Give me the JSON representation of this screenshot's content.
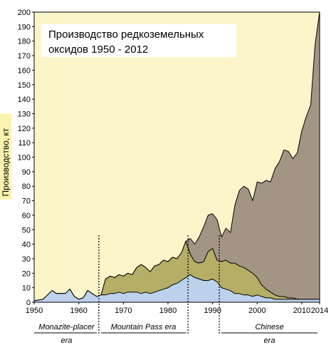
{
  "chart_data": {
    "type": "area",
    "title_lines": [
      "Производство редкоземельных",
      "оксидов 1950 - 2012"
    ],
    "xlabel": "",
    "ylabel": "Производство, кт",
    "xlim": [
      1950,
      2014
    ],
    "ylim": [
      0,
      200
    ],
    "x_ticks": [
      1950,
      1960,
      1970,
      1980,
      1990,
      2000,
      2010,
      2014
    ],
    "y_ticks": [
      0,
      10,
      20,
      30,
      40,
      50,
      60,
      70,
      80,
      90,
      100,
      110,
      120,
      130,
      140,
      150,
      160,
      170,
      180,
      190,
      200
    ],
    "colors": {
      "background": "#fbf5c9",
      "brown": "#a39584",
      "olive": "#b4ae66",
      "blue": "#bcd1ec",
      "line": "#000000"
    },
    "layers": [
      {
        "color_key": "brown",
        "points": [
          [
            1950,
            1
          ],
          [
            1952,
            2
          ],
          [
            1954,
            8
          ],
          [
            1955,
            6
          ],
          [
            1957,
            6
          ],
          [
            1958,
            9
          ],
          [
            1959,
            4
          ],
          [
            1960,
            2
          ],
          [
            1961,
            3
          ],
          [
            1962,
            8
          ],
          [
            1963,
            6
          ],
          [
            1964,
            4
          ],
          [
            1965,
            5
          ],
          [
            1966,
            16
          ],
          [
            1967,
            18
          ],
          [
            1968,
            17
          ],
          [
            1969,
            19
          ],
          [
            1970,
            18
          ],
          [
            1971,
            20
          ],
          [
            1972,
            19
          ],
          [
            1973,
            24
          ],
          [
            1974,
            26
          ],
          [
            1975,
            24
          ],
          [
            1976,
            21
          ],
          [
            1977,
            25
          ],
          [
            1978,
            26
          ],
          [
            1979,
            29
          ],
          [
            1980,
            28
          ],
          [
            1981,
            31
          ],
          [
            1982,
            30
          ],
          [
            1983,
            34
          ],
          [
            1984,
            42
          ],
          [
            1985,
            44
          ],
          [
            1986,
            40
          ],
          [
            1987,
            45
          ],
          [
            1988,
            52
          ],
          [
            1989,
            60
          ],
          [
            1990,
            61
          ],
          [
            1991,
            57
          ],
          [
            1992,
            45
          ],
          [
            1993,
            51
          ],
          [
            1994,
            48
          ],
          [
            1995,
            67
          ],
          [
            1996,
            77
          ],
          [
            1997,
            80
          ],
          [
            1998,
            78
          ],
          [
            1999,
            70
          ],
          [
            2000,
            83
          ],
          [
            2001,
            82
          ],
          [
            2002,
            84
          ],
          [
            2003,
            83
          ],
          [
            2004,
            92
          ],
          [
            2005,
            97
          ],
          [
            2006,
            105
          ],
          [
            2007,
            104
          ],
          [
            2008,
            99
          ],
          [
            2009,
            103
          ],
          [
            2010,
            118
          ],
          [
            2011,
            128
          ],
          [
            2012,
            136
          ],
          [
            2013,
            178
          ],
          [
            2014,
            200
          ]
        ]
      },
      {
        "color_key": "olive",
        "points": [
          [
            1950,
            1
          ],
          [
            1952,
            2
          ],
          [
            1954,
            8
          ],
          [
            1955,
            6
          ],
          [
            1957,
            6
          ],
          [
            1958,
            9
          ],
          [
            1959,
            4
          ],
          [
            1960,
            2
          ],
          [
            1961,
            3
          ],
          [
            1962,
            8
          ],
          [
            1963,
            6
          ],
          [
            1964,
            4
          ],
          [
            1965,
            5
          ],
          [
            1966,
            16
          ],
          [
            1967,
            18
          ],
          [
            1968,
            17
          ],
          [
            1969,
            19
          ],
          [
            1970,
            18
          ],
          [
            1971,
            20
          ],
          [
            1972,
            19
          ],
          [
            1973,
            24
          ],
          [
            1974,
            26
          ],
          [
            1975,
            24
          ],
          [
            1976,
            21
          ],
          [
            1977,
            25
          ],
          [
            1978,
            26
          ],
          [
            1979,
            29
          ],
          [
            1980,
            28
          ],
          [
            1981,
            31
          ],
          [
            1982,
            30
          ],
          [
            1983,
            34
          ],
          [
            1984,
            42
          ],
          [
            1985,
            33
          ],
          [
            1986,
            28
          ],
          [
            1987,
            27
          ],
          [
            1988,
            28
          ],
          [
            1989,
            35
          ],
          [
            1990,
            37
          ],
          [
            1991,
            29
          ],
          [
            1992,
            28
          ],
          [
            1993,
            29
          ],
          [
            1994,
            27
          ],
          [
            1995,
            27
          ],
          [
            1996,
            25
          ],
          [
            1997,
            24
          ],
          [
            1998,
            22
          ],
          [
            1999,
            20
          ],
          [
            2000,
            17
          ],
          [
            2001,
            12
          ],
          [
            2002,
            9
          ],
          [
            2003,
            7
          ],
          [
            2004,
            5
          ],
          [
            2005,
            4
          ],
          [
            2006,
            4
          ],
          [
            2007,
            3
          ],
          [
            2008,
            3
          ],
          [
            2009,
            2
          ],
          [
            2010,
            2
          ],
          [
            2011,
            2
          ],
          [
            2012,
            2
          ],
          [
            2013,
            2
          ],
          [
            2014,
            2
          ]
        ]
      },
      {
        "color_key": "blue",
        "points": [
          [
            1950,
            1
          ],
          [
            1952,
            2
          ],
          [
            1954,
            8
          ],
          [
            1955,
            6
          ],
          [
            1957,
            6
          ],
          [
            1958,
            9
          ],
          [
            1959,
            4
          ],
          [
            1960,
            2
          ],
          [
            1961,
            3
          ],
          [
            1962,
            8
          ],
          [
            1963,
            6
          ],
          [
            1964,
            4
          ],
          [
            1965,
            5
          ],
          [
            1966,
            5
          ],
          [
            1967,
            6
          ],
          [
            1968,
            6
          ],
          [
            1969,
            7
          ],
          [
            1970,
            6
          ],
          [
            1971,
            7
          ],
          [
            1972,
            7
          ],
          [
            1973,
            7
          ],
          [
            1974,
            6
          ],
          [
            1975,
            7
          ],
          [
            1976,
            6
          ],
          [
            1977,
            7
          ],
          [
            1978,
            8
          ],
          [
            1979,
            9
          ],
          [
            1980,
            10
          ],
          [
            1981,
            12
          ],
          [
            1982,
            13
          ],
          [
            1983,
            15
          ],
          [
            1984,
            17
          ],
          [
            1985,
            19
          ],
          [
            1986,
            17
          ],
          [
            1987,
            16
          ],
          [
            1988,
            15
          ],
          [
            1989,
            15
          ],
          [
            1990,
            16
          ],
          [
            1991,
            14
          ],
          [
            1992,
            10
          ],
          [
            1993,
            9
          ],
          [
            1994,
            8
          ],
          [
            1995,
            6
          ],
          [
            1996,
            6
          ],
          [
            1997,
            5
          ],
          [
            1998,
            5
          ],
          [
            1999,
            4
          ],
          [
            2000,
            5
          ],
          [
            2001,
            4
          ],
          [
            2002,
            3
          ],
          [
            2003,
            3
          ],
          [
            2004,
            2
          ],
          [
            2005,
            2
          ],
          [
            2006,
            2
          ],
          [
            2007,
            2
          ],
          [
            2008,
            2
          ],
          [
            2009,
            2
          ],
          [
            2010,
            2
          ],
          [
            2011,
            2
          ],
          [
            2012,
            2
          ],
          [
            2013,
            2
          ],
          [
            2014,
            2
          ]
        ]
      }
    ],
    "era_dividers": [
      1964.5,
      1984.5,
      1991.5
    ],
    "eras": [
      {
        "label_top": "Monazite-placer",
        "label_bottom": "era",
        "from": 1950,
        "to": 1964.5
      },
      {
        "label_top": "Mountain Pass era",
        "label_bottom": "",
        "from": 1964.5,
        "to": 1984.5
      },
      {
        "label_top": "Chinese",
        "label_bottom": "era",
        "from": 1991.5,
        "to": 2014
      }
    ]
  }
}
